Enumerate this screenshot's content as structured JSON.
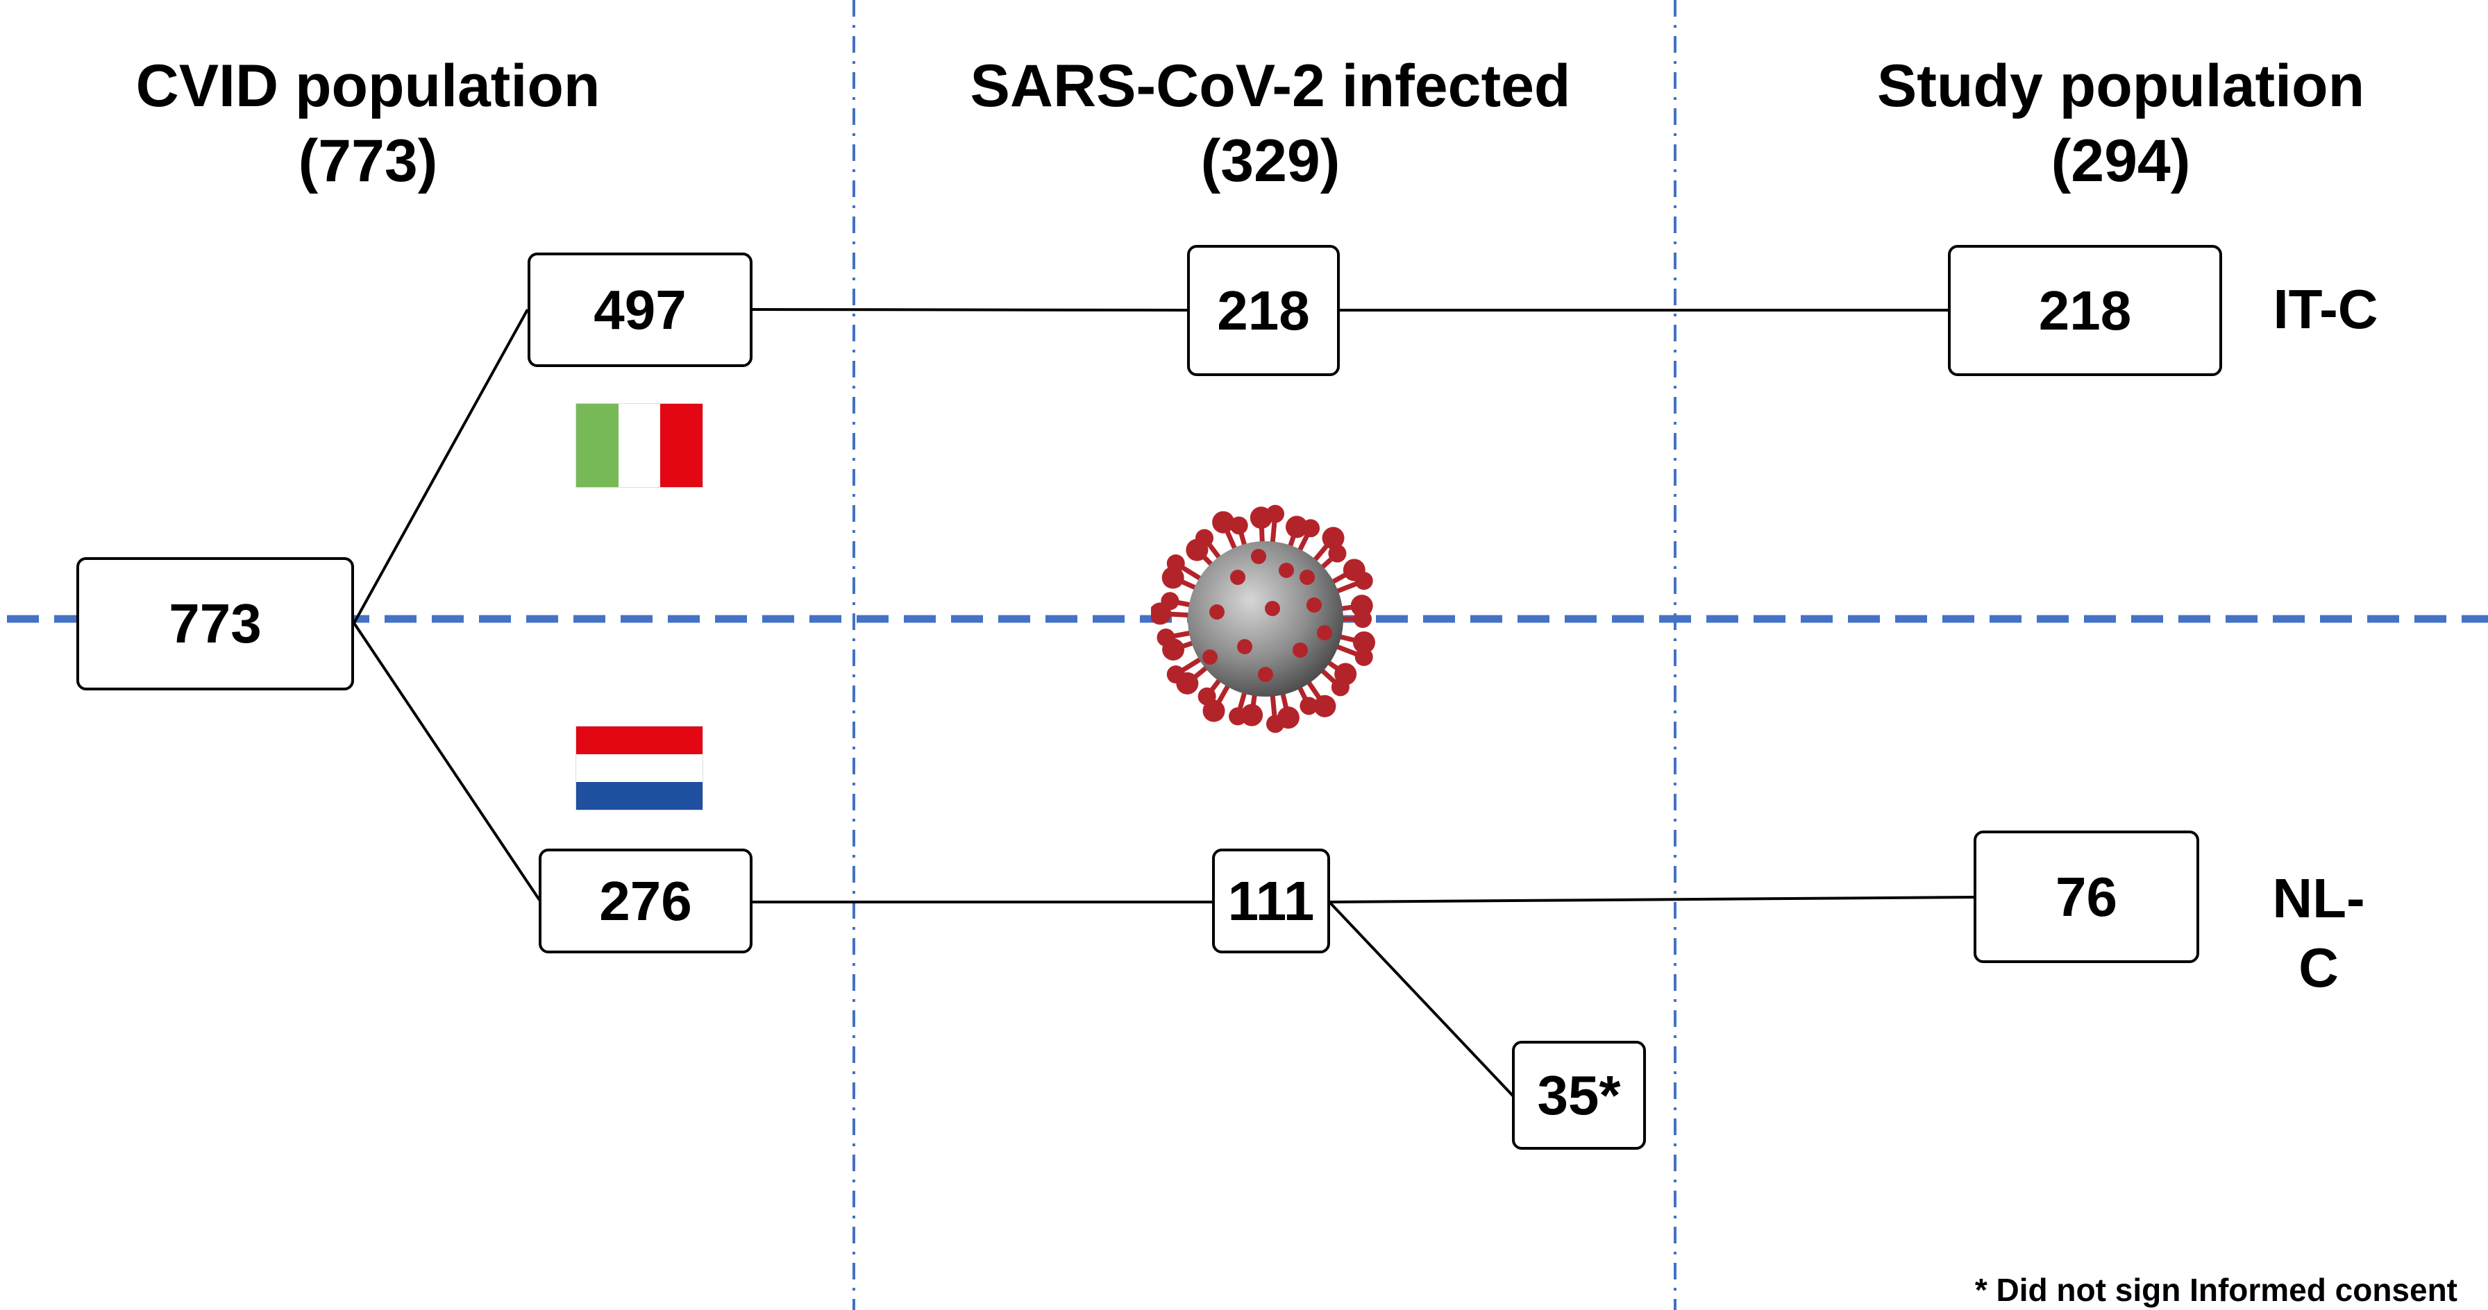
{
  "headings": {
    "cvid": {
      "line1": "CVID population",
      "line2": "(773)"
    },
    "infected": {
      "line1": "SARS-CoV-2 infected",
      "line2": "(329)"
    },
    "study": {
      "line1": "Study population",
      "line2": "(294)"
    }
  },
  "boxes": {
    "total": "773",
    "it_cvid": "497",
    "it_infected": "218",
    "it_study": "218",
    "nl_cvid": "276",
    "nl_infected": "111",
    "nl_excluded": "35*",
    "nl_study": "76"
  },
  "tags": {
    "it": "IT-C",
    "nl_line1": "NL-",
    "nl_line2": "C"
  },
  "footnote": "* Did not sign Informed consent",
  "colors": {
    "divider_blue": "#4472c4",
    "italy": [
      "#78b957",
      "#ffffff",
      "#e30613"
    ],
    "netherlands": [
      "#e30613",
      "#ffffff",
      "#1f4f9f"
    ],
    "virus_body": "#8c8c8c",
    "virus_spike": "#b3242a"
  },
  "icons": [
    "italy-flag-icon",
    "netherlands-flag-icon",
    "coronavirus-icon"
  ]
}
